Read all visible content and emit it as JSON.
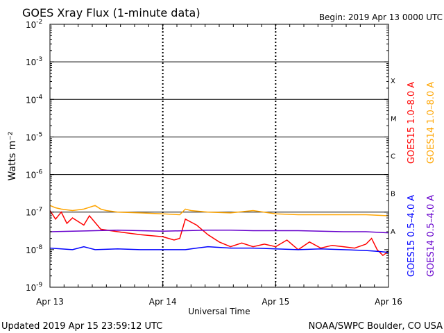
{
  "header": {
    "title": "GOES Xray Flux (1-minute data)",
    "begin": "Begin:  2019 Apr 13 0000 UTC"
  },
  "footer": {
    "updated": "Updated 2019 Apr 15 23:59:12 UTC",
    "credit": "NOAA/SWPC Boulder, CO USA"
  },
  "colors": {
    "goes15_long": "#ff0000",
    "goes14_long": "#ffa500",
    "goes15_short": "#0000ff",
    "goes14_short": "#6600cc"
  },
  "chart_data": {
    "type": "line",
    "title": "GOES Xray Flux (1-minute data)",
    "xlabel": "Universal Time",
    "ylabel": "Watts m⁻²",
    "y_scale": "log",
    "ylim": [
      1e-09,
      0.01
    ],
    "xlim": [
      0,
      3
    ],
    "x_ticks": [
      {
        "value": 0,
        "label": "Apr 13"
      },
      {
        "value": 1,
        "label": "Apr 14"
      },
      {
        "value": 2,
        "label": "Apr 15"
      },
      {
        "value": 3,
        "label": "Apr 16"
      }
    ],
    "y_ticks": [
      {
        "exp": -9,
        "base": "10",
        "sup": "-9"
      },
      {
        "exp": -8,
        "base": "10",
        "sup": "-8"
      },
      {
        "exp": -7,
        "base": "10",
        "sup": "-7"
      },
      {
        "exp": -6,
        "base": "10",
        "sup": "-6"
      },
      {
        "exp": -5,
        "base": "10",
        "sup": "-5"
      },
      {
        "exp": -4,
        "base": "10",
        "sup": "-4"
      },
      {
        "exp": -3,
        "base": "10",
        "sup": "-3"
      },
      {
        "exp": -2,
        "base": "10",
        "sup": "-2"
      }
    ],
    "flare_classes": [
      {
        "label": "X",
        "exp": -3.5
      },
      {
        "label": "M",
        "exp": -4.5
      },
      {
        "label": "C",
        "exp": -5.5
      },
      {
        "label": "B",
        "exp": -6.5
      },
      {
        "label": "A",
        "exp": -7.5
      }
    ],
    "legend": [
      {
        "label": "GOES15 1.0–8.0 A",
        "series": "goes15_long"
      },
      {
        "label": "GOES14 1.0–8.0 A",
        "series": "goes14_long"
      },
      {
        "label": "GOES15 0.5–4.0 A",
        "series": "goes15_short"
      },
      {
        "label": "GOES14 0.5–4.0 A",
        "series": "goes14_short"
      }
    ],
    "series": [
      {
        "key": "goes14_long",
        "name": "GOES14 1.0-8.0 A",
        "x": [
          0,
          0.05,
          0.1,
          0.2,
          0.3,
          0.4,
          0.45,
          0.5,
          0.6,
          0.8,
          1.0,
          1.15,
          1.2,
          1.25,
          1.4,
          1.6,
          1.8,
          2.0,
          2.2,
          2.4,
          2.6,
          2.8,
          3.0
        ],
        "values": [
          1.5e-07,
          1.3e-07,
          1.2e-07,
          1.1e-07,
          1.2e-07,
          1.5e-07,
          1.2e-07,
          1.1e-07,
          1e-07,
          9.5e-08,
          9e-08,
          8.5e-08,
          1.2e-07,
          1.1e-07,
          1e-07,
          9.5e-08,
          1.1e-07,
          9e-08,
          8.5e-08,
          8.5e-08,
          8.5e-08,
          8.5e-08,
          8e-08
        ]
      },
      {
        "key": "goes15_long",
        "name": "GOES15 1.0-8.0 A",
        "x": [
          0,
          0.05,
          0.1,
          0.15,
          0.2,
          0.3,
          0.35,
          0.45,
          0.6,
          0.8,
          1.0,
          1.1,
          1.15,
          1.2,
          1.3,
          1.4,
          1.5,
          1.6,
          1.7,
          1.8,
          1.9,
          2.0,
          2.1,
          2.2,
          2.3,
          2.4,
          2.5,
          2.6,
          2.7,
          2.8,
          2.85,
          2.9,
          2.95,
          3.0
        ],
        "values": [
          1.1e-07,
          6.5e-08,
          1e-07,
          5e-08,
          7e-08,
          4.5e-08,
          8e-08,
          3.5e-08,
          3e-08,
          2.5e-08,
          2.2e-08,
          1.8e-08,
          2e-08,
          6.5e-08,
          4.5e-08,
          2.5e-08,
          1.6e-08,
          1.2e-08,
          1.5e-08,
          1.2e-08,
          1.4e-08,
          1.2e-08,
          1.8e-08,
          1e-08,
          1.6e-08,
          1.1e-08,
          1.3e-08,
          1.2e-08,
          1.1e-08,
          1.4e-08,
          2e-08,
          1e-08,
          7e-09,
          9e-09
        ]
      },
      {
        "key": "goes14_short",
        "name": "GOES14 0.5-4.0 A",
        "x": [
          0,
          0.2,
          0.4,
          0.6,
          0.8,
          1.0,
          1.2,
          1.4,
          1.6,
          1.8,
          2.0,
          2.2,
          2.4,
          2.6,
          2.8,
          3.0
        ],
        "values": [
          3e-08,
          3.1e-08,
          3.2e-08,
          3.3e-08,
          3.2e-08,
          3.1e-08,
          3.2e-08,
          3.3e-08,
          3.3e-08,
          3.2e-08,
          3.2e-08,
          3.2e-08,
          3.1e-08,
          3e-08,
          3e-08,
          2.8e-08
        ]
      },
      {
        "key": "goes15_short",
        "name": "GOES15 0.5-4.0 A",
        "x": [
          0,
          0.2,
          0.3,
          0.4,
          0.6,
          0.8,
          1.0,
          1.2,
          1.3,
          1.4,
          1.6,
          1.8,
          2.0,
          2.2,
          2.4,
          2.6,
          2.8,
          2.9,
          3.0
        ],
        "values": [
          1.1e-08,
          1e-08,
          1.2e-08,
          1e-08,
          1.05e-08,
          1e-08,
          1e-08,
          1e-08,
          1.1e-08,
          1.2e-08,
          1.1e-08,
          1.1e-08,
          1.05e-08,
          1e-08,
          1.05e-08,
          1e-08,
          9.5e-09,
          9e-09,
          8.5e-09
        ]
      }
    ]
  }
}
